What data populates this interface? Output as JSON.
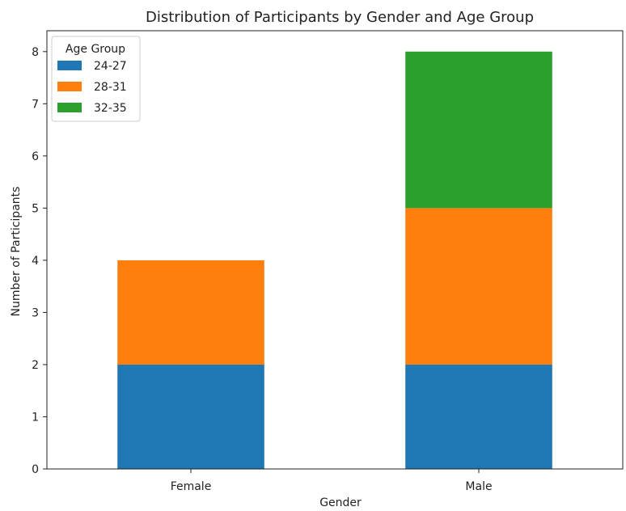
{
  "chart_data": {
    "type": "bar",
    "stacked": true,
    "title": "Distribution of Participants by Gender and Age Group",
    "xlabel": "Gender",
    "ylabel": "Number of Participants",
    "categories": [
      "Female",
      "Male"
    ],
    "series": [
      {
        "name": "24-27",
        "values": [
          2,
          2
        ],
        "color": "#1f77b4"
      },
      {
        "name": "28-31",
        "values": [
          2,
          3
        ],
        "color": "#ff7f0e"
      },
      {
        "name": "32-35",
        "values": [
          0,
          3
        ],
        "color": "#2ca02c"
      }
    ],
    "ylim": [
      0,
      8.4
    ],
    "yticks": [
      0,
      1,
      2,
      3,
      4,
      5,
      6,
      7,
      8
    ],
    "grid": false,
    "legend": {
      "title": "Age Group",
      "placement": "top-left"
    }
  }
}
